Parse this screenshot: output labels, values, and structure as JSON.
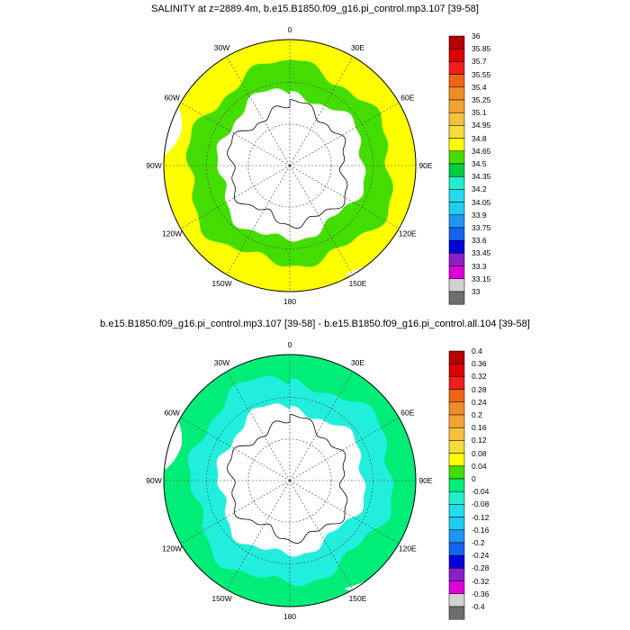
{
  "panels": [
    {
      "title": "SALINITY at z=2889.4m, b.e15.B1850.f09_g16.pi_control.mp3.107 [39-58]",
      "lon_labels": [
        "0",
        "30E",
        "60E",
        "90E",
        "120E",
        "150E",
        "180",
        "150W",
        "120W",
        "90W",
        "60W",
        "30W"
      ],
      "colorbar": {
        "labels": [
          "36",
          "35.85",
          "35.7",
          "35.55",
          "35.4",
          "35.25",
          "35.1",
          "34.95",
          "34.8",
          "34.65",
          "34.5",
          "34.35",
          "34.2",
          "34.05",
          "33.9",
          "33.75",
          "33.6",
          "33.45",
          "33.3",
          "33.15",
          "33"
        ],
        "colors": [
          "#b40000",
          "#dc0000",
          "#f01e1e",
          "#f06414",
          "#f08c28",
          "#f0a532",
          "#f5c03c",
          "#f5dc3c",
          "#ffff00",
          "#44dd00",
          "#00cc44",
          "#22eecc",
          "#22ddee",
          "#22ccee",
          "#1e96f0",
          "#1464f0",
          "#0000dc",
          "#8c1ec8",
          "#dc00dc",
          "#d2d2d2",
          "#6e6e6e"
        ]
      },
      "fields": {
        "deep_color": "#44dd00",
        "shelf_color": "#ffffff",
        "outer_color": "#ffff00"
      }
    },
    {
      "title": "b.e15.B1850.f09_g16.pi_control.mp3.107 [39-58] - b.e15.B1850.f09_g16.pi_control.all.104 [39-58]",
      "lon_labels": [
        "0",
        "30E",
        "60E",
        "90E",
        "120E",
        "150E",
        "180",
        "150W",
        "120W",
        "90W",
        "60W",
        "30W"
      ],
      "colorbar": {
        "labels": [
          "0.4",
          "0.36",
          "0.32",
          "0.28",
          "0.24",
          "0.2",
          "0.16",
          "0.12",
          "0.08",
          "0.04",
          "0",
          "-0.04",
          "-0.08",
          "-0.12",
          "-0.16",
          "-0.2",
          "-0.24",
          "-0.28",
          "-0.32",
          "-0.36",
          "-0.4"
        ],
        "colors": [
          "#b40000",
          "#dc0000",
          "#f01e1e",
          "#f06414",
          "#f08c28",
          "#f0a532",
          "#f5c03c",
          "#f5dc3c",
          "#ffff00",
          "#44dd00",
          "#00ee77",
          "#22eecc",
          "#22ddee",
          "#22ccee",
          "#1e96f0",
          "#1464f0",
          "#0000dc",
          "#8c1ec8",
          "#dc00dc",
          "#d2d2d2",
          "#6e6e6e"
        ]
      },
      "fields": {
        "deep_color": "#22eedd",
        "shelf_color": "#ffffff",
        "outer_color": "#00ee77"
      }
    }
  ]
}
